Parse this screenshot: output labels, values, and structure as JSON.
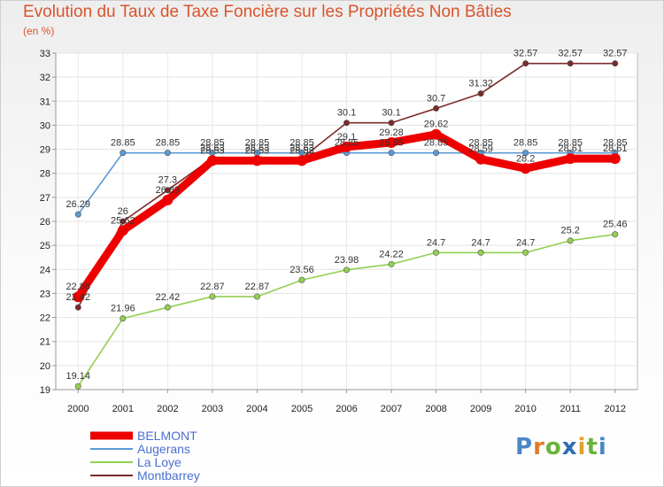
{
  "chart_data": {
    "type": "line",
    "title": "Evolution du Taux de Taxe Foncière sur les Propriétés Non Bâties",
    "subtitle": "(en %)",
    "xlabel": "",
    "ylabel": "",
    "ylim": [
      19,
      33
    ],
    "grid": true,
    "legend_position": "bottom-left",
    "categories": [
      "2000",
      "2001",
      "2002",
      "2003",
      "2004",
      "2005",
      "2006",
      "2007",
      "2008",
      "2009",
      "2010",
      "2011",
      "2012"
    ],
    "y_ticks": [
      "19",
      "20",
      "21",
      "22",
      "23",
      "24",
      "25",
      "26",
      "27",
      "28",
      "29",
      "30",
      "31",
      "32",
      "33"
    ],
    "series": [
      {
        "name": "Augerans",
        "color": "#5b9bd5",
        "values": [
          26.29,
          28.85,
          28.85,
          28.85,
          28.85,
          28.85,
          28.85,
          28.85,
          28.85,
          28.85,
          28.85,
          28.85,
          28.85
        ],
        "labels": [
          "26.29",
          "28.85",
          "28.85",
          "28.85",
          "28.85",
          "28.85",
          "28.85",
          "28.85",
          "28.85",
          "28.85",
          "28.85",
          "28.85",
          "28.85"
        ]
      },
      {
        "name": "La Loye",
        "color": "#92d050",
        "values": [
          19.14,
          21.96,
          22.42,
          22.87,
          22.87,
          23.56,
          23.98,
          24.22,
          24.7,
          24.7,
          24.7,
          25.2,
          25.46
        ],
        "labels": [
          "19.14",
          "21.96",
          "22.42",
          "22.87",
          "22.87",
          "23.56",
          "23.98",
          "24.22",
          "24.7",
          "24.7",
          "24.7",
          "25.2",
          "25.46"
        ]
      },
      {
        "name": "Montbarrey",
        "color": "#7b2a2a",
        "values": [
          22.42,
          26,
          27.3,
          28.63,
          28.63,
          28.63,
          30.1,
          30.1,
          30.7,
          31.32,
          32.57,
          32.57,
          32.57
        ],
        "labels": [
          "22.42",
          "26",
          "27.3",
          "28.63",
          "28.63",
          "28.63",
          "30.1",
          "30.1",
          "30.7",
          "31.32",
          "32.57",
          "32.57",
          "32.57"
        ]
      },
      {
        "name": "BELMONT",
        "color": "#ee0000",
        "values": [
          22.86,
          25.62,
          26.89,
          28.53,
          28.53,
          28.53,
          29.1,
          29.28,
          29.62,
          28.59,
          28.2,
          28.61,
          28.61
        ],
        "labels": [
          "22.86",
          "25.62",
          "26.89",
          "28.53",
          "28.53",
          "28.53",
          "29.1",
          "29.28",
          "29.62",
          "28.59",
          "28.2",
          "28.61",
          "28.61"
        ]
      }
    ],
    "legend": [
      {
        "name": "BELMONT",
        "color": "#ee0000"
      },
      {
        "name": "Augerans",
        "color": "#5b9bd5"
      },
      {
        "name": "La Loye",
        "color": "#92d050"
      },
      {
        "name": "Montbarrey",
        "color": "#7b2a2a"
      }
    ]
  },
  "brand": {
    "letters": [
      "P",
      "r",
      "o",
      "x",
      "i",
      "t",
      "i"
    ],
    "colors": [
      "#4a86c8",
      "#e07a2e",
      "#6bb33a",
      "#2d6db3",
      "#e0a12e",
      "#6bb33a",
      "#4a86c8"
    ]
  }
}
